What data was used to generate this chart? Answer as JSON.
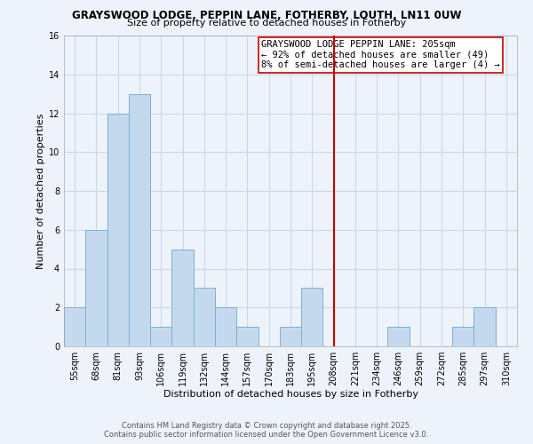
{
  "title": "GRAYSWOOD LODGE, PEPPIN LANE, FOTHERBY, LOUTH, LN11 0UW",
  "subtitle": "Size of property relative to detached houses in Fotherby",
  "xlabel": "Distribution of detached houses by size in Fotherby",
  "ylabel": "Number of detached properties",
  "bar_color": "#c5d9ee",
  "bar_edge_color": "#7bafd4",
  "grid_color": "#c8d8e8",
  "background_color": "#eef3fb",
  "bin_labels": [
    "55sqm",
    "68sqm",
    "81sqm",
    "93sqm",
    "106sqm",
    "119sqm",
    "132sqm",
    "144sqm",
    "157sqm",
    "170sqm",
    "183sqm",
    "195sqm",
    "208sqm",
    "221sqm",
    "234sqm",
    "246sqm",
    "259sqm",
    "272sqm",
    "285sqm",
    "297sqm",
    "310sqm"
  ],
  "bar_heights": [
    2,
    6,
    12,
    13,
    1,
    5,
    3,
    2,
    1,
    0,
    1,
    3,
    0,
    0,
    0,
    1,
    0,
    0,
    1,
    2,
    0
  ],
  "vline_x": 12,
  "vline_color": "#cc0000",
  "ylim": [
    0,
    16
  ],
  "yticks": [
    0,
    2,
    4,
    6,
    8,
    10,
    12,
    14,
    16
  ],
  "annotation_text": "GRAYSWOOD LODGE PEPPIN LANE: 205sqm\n← 92% of detached houses are smaller (49)\n8% of semi-detached houses are larger (4) →",
  "footer_line1": "Contains HM Land Registry data © Crown copyright and database right 2025.",
  "footer_line2": "Contains public sector information licensed under the Open Government Licence v3.0.",
  "title_fontsize": 8.5,
  "subtitle_fontsize": 8,
  "axis_label_fontsize": 8,
  "tick_fontsize": 7,
  "annotation_fontsize": 7.5,
  "footer_fontsize": 6
}
